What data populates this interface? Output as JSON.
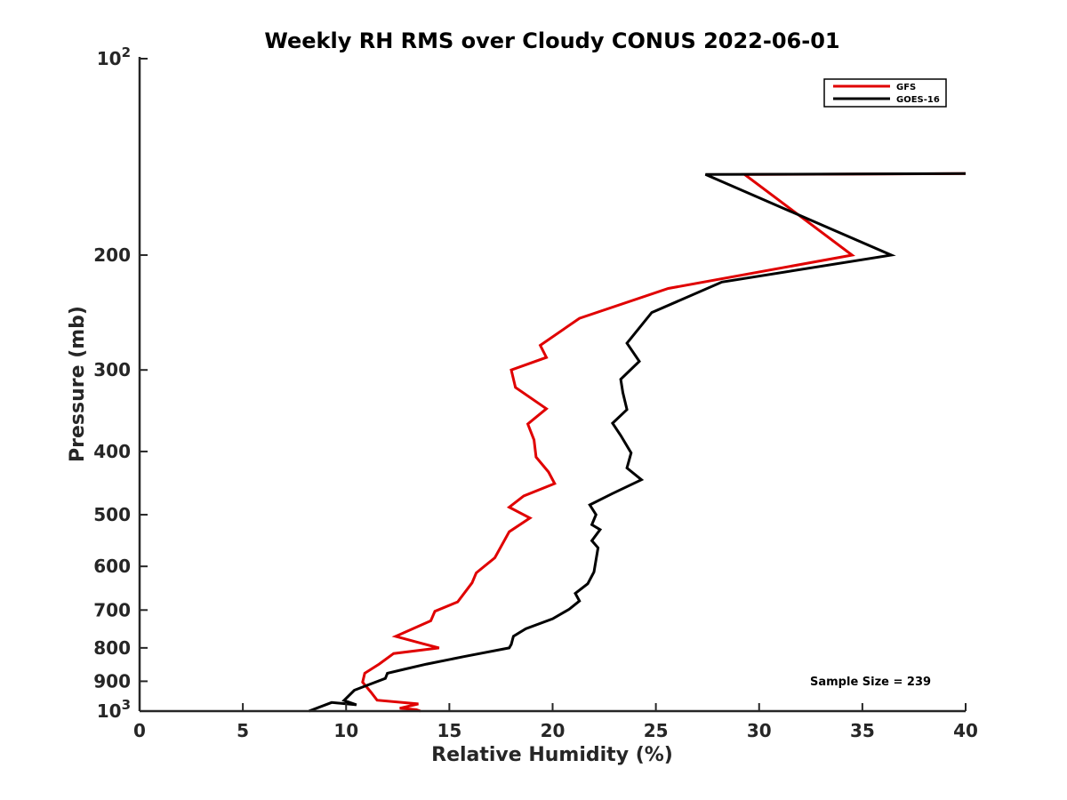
{
  "chart_data": {
    "type": "line",
    "title": "Weekly RH RMS over Cloudy CONUS 2022-06-01",
    "xlabel": "Relative Humidity (%)",
    "ylabel": "Pressure (mb)",
    "xlim": [
      0,
      40
    ],
    "ylim": [
      100,
      1000
    ],
    "y_scale": "log",
    "y_reversed": true,
    "grid": false,
    "legend_position": "top-right",
    "x_ticks": [
      0,
      5,
      10,
      15,
      20,
      25,
      30,
      35,
      40
    ],
    "x_tick_labels": [
      "0",
      "5",
      "10",
      "15",
      "20",
      "25",
      "30",
      "35",
      "40"
    ],
    "y_ticks": [
      100,
      200,
      300,
      400,
      500,
      600,
      700,
      800,
      900,
      1000
    ],
    "y_tick_labels": [
      {
        "base": "10",
        "exp": "2"
      },
      {
        "text": "200"
      },
      {
        "text": "300"
      },
      {
        "text": "400"
      },
      {
        "text": "500"
      },
      {
        "text": "600"
      },
      {
        "text": "700"
      },
      {
        "text": "800"
      },
      {
        "text": "900"
      },
      {
        "base": "10",
        "exp": "3"
      }
    ],
    "annotation": "Sample Size = 239",
    "series": [
      {
        "name": "GFS",
        "color": "#e00000",
        "points": [
          [
            40.0,
            150
          ],
          [
            29.3,
            150.5
          ],
          [
            34.5,
            200
          ],
          [
            25.6,
            225
          ],
          [
            21.3,
            250
          ],
          [
            19.4,
            275
          ],
          [
            19.7,
            287
          ],
          [
            18.0,
            300
          ],
          [
            18.2,
            319
          ],
          [
            19.7,
            344
          ],
          [
            18.8,
            363
          ],
          [
            19.1,
            384
          ],
          [
            19.2,
            408
          ],
          [
            19.8,
            430
          ],
          [
            20.1,
            448
          ],
          [
            18.6,
            468
          ],
          [
            17.9,
            487
          ],
          [
            18.9,
            506
          ],
          [
            17.9,
            531
          ],
          [
            17.2,
            582
          ],
          [
            16.3,
            614
          ],
          [
            16.1,
            636
          ],
          [
            15.4,
            680
          ],
          [
            14.3,
            703
          ],
          [
            14.1,
            727
          ],
          [
            12.4,
            768
          ],
          [
            13.7,
            788
          ],
          [
            14.5,
            800
          ],
          [
            12.3,
            816
          ],
          [
            11.6,
            847
          ],
          [
            10.9,
            875
          ],
          [
            10.8,
            903
          ],
          [
            11.2,
            935
          ],
          [
            11.5,
            962
          ],
          [
            13.5,
            975
          ],
          [
            12.6,
            990
          ],
          [
            13.4,
            995
          ],
          [
            13.6,
            1000
          ]
        ]
      },
      {
        "name": "GOES-16",
        "color": "#000000",
        "points": [
          [
            40.0,
            150
          ],
          [
            27.4,
            150.5
          ],
          [
            36.4,
            200
          ],
          [
            28.2,
            220
          ],
          [
            24.8,
            245
          ],
          [
            23.6,
            273
          ],
          [
            24.2,
            291
          ],
          [
            23.3,
            310
          ],
          [
            23.4,
            325
          ],
          [
            23.6,
            345
          ],
          [
            22.9,
            362
          ],
          [
            23.3,
            378
          ],
          [
            23.8,
            402
          ],
          [
            23.6,
            424
          ],
          [
            24.3,
            442
          ],
          [
            22.9,
            464
          ],
          [
            21.8,
            483
          ],
          [
            22.1,
            500
          ],
          [
            21.9,
            518
          ],
          [
            22.3,
            527
          ],
          [
            21.9,
            548
          ],
          [
            22.2,
            562
          ],
          [
            22.0,
            612
          ],
          [
            21.7,
            638
          ],
          [
            21.1,
            660
          ],
          [
            21.3,
            678
          ],
          [
            20.8,
            698
          ],
          [
            20.0,
            722
          ],
          [
            18.7,
            748
          ],
          [
            18.1,
            768
          ],
          [
            18.0,
            790
          ],
          [
            17.9,
            800
          ],
          [
            15.7,
            825
          ],
          [
            13.9,
            847
          ],
          [
            12.8,
            863
          ],
          [
            12.0,
            875
          ],
          [
            11.9,
            891
          ],
          [
            10.9,
            916
          ],
          [
            10.4,
            929
          ],
          [
            9.9,
            963
          ],
          [
            10.5,
            978
          ],
          [
            9.3,
            970
          ],
          [
            8.2,
            1000
          ]
        ]
      }
    ]
  }
}
